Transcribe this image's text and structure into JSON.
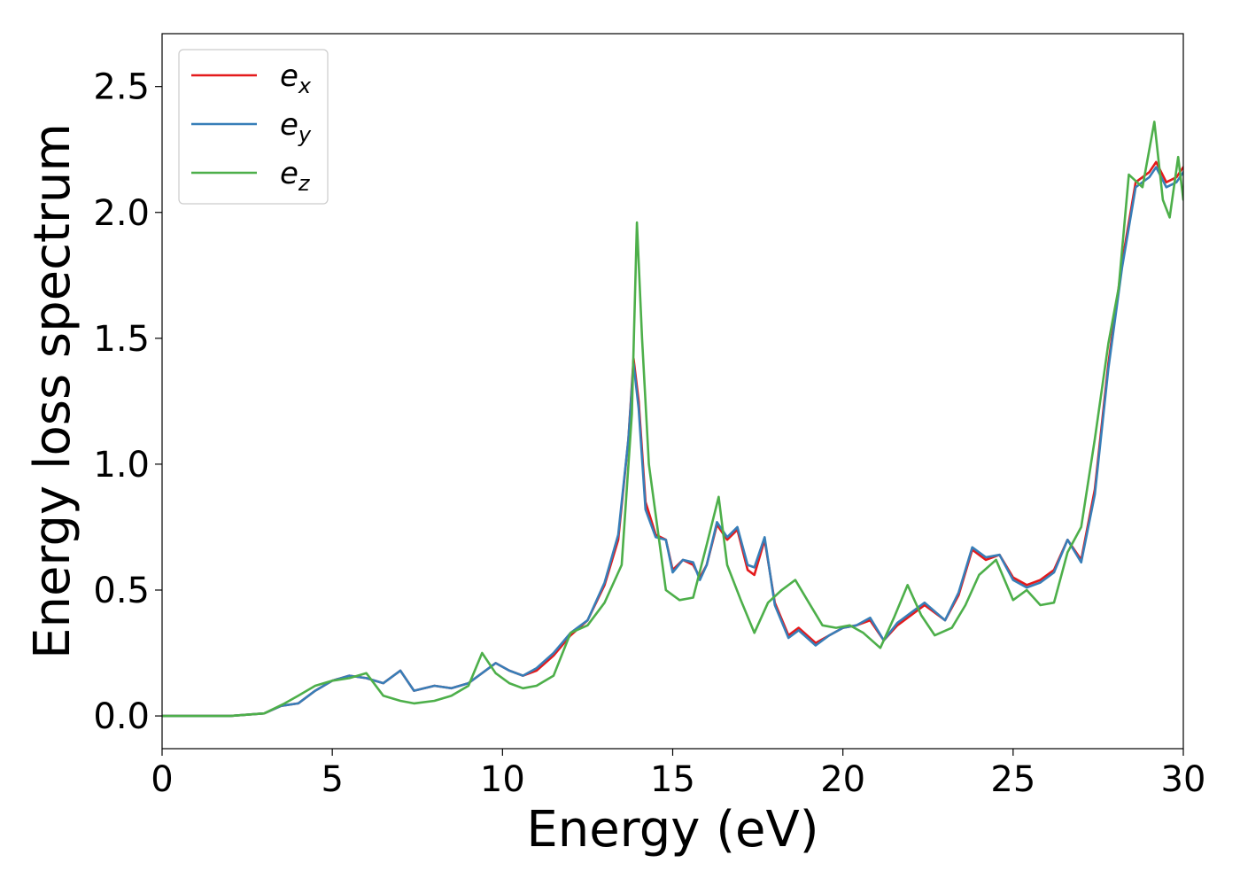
{
  "chart_data": {
    "type": "line",
    "xlabel": "Energy (eV)",
    "ylabel": "Energy loss spectrum",
    "xlim": [
      0,
      30
    ],
    "ylim": [
      -0.13,
      2.71
    ],
    "x_ticks": [
      "0",
      "5",
      "10",
      "15",
      "20",
      "25",
      "30"
    ],
    "y_ticks": [
      "0.0",
      "0.5",
      "1.0",
      "1.5",
      "2.0",
      "2.5"
    ],
    "grid": false,
    "legend_position": "top-left",
    "series": [
      {
        "name": "e",
        "subscript": "x",
        "color": "#e41a1c",
        "points": [
          [
            0,
            0
          ],
          [
            1,
            0
          ],
          [
            2,
            0
          ],
          [
            3,
            0.01
          ],
          [
            3.5,
            0.04
          ],
          [
            4,
            0.05
          ],
          [
            4.5,
            0.1
          ],
          [
            5,
            0.14
          ],
          [
            5.5,
            0.16
          ],
          [
            6,
            0.15
          ],
          [
            6.5,
            0.13
          ],
          [
            7,
            0.18
          ],
          [
            7.4,
            0.1
          ],
          [
            8,
            0.12
          ],
          [
            8.5,
            0.11
          ],
          [
            9,
            0.13
          ],
          [
            9.5,
            0.18
          ],
          [
            9.8,
            0.21
          ],
          [
            10.2,
            0.18
          ],
          [
            10.6,
            0.16
          ],
          [
            11,
            0.18
          ],
          [
            11.5,
            0.24
          ],
          [
            12,
            0.32
          ],
          [
            12.5,
            0.38
          ],
          [
            13,
            0.52
          ],
          [
            13.4,
            0.7
          ],
          [
            13.7,
            1.1
          ],
          [
            13.85,
            1.42
          ],
          [
            14,
            1.25
          ],
          [
            14.2,
            0.85
          ],
          [
            14.5,
            0.72
          ],
          [
            14.8,
            0.7
          ],
          [
            15,
            0.58
          ],
          [
            15.3,
            0.62
          ],
          [
            15.6,
            0.6
          ],
          [
            15.8,
            0.55
          ],
          [
            16,
            0.6
          ],
          [
            16.3,
            0.76
          ],
          [
            16.6,
            0.7
          ],
          [
            16.9,
            0.74
          ],
          [
            17.2,
            0.58
          ],
          [
            17.4,
            0.56
          ],
          [
            17.7,
            0.7
          ],
          [
            18,
            0.45
          ],
          [
            18.4,
            0.32
          ],
          [
            18.7,
            0.35
          ],
          [
            19.2,
            0.29
          ],
          [
            19.6,
            0.32
          ],
          [
            20,
            0.35
          ],
          [
            20.4,
            0.36
          ],
          [
            20.8,
            0.38
          ],
          [
            21.2,
            0.3
          ],
          [
            21.6,
            0.36
          ],
          [
            22,
            0.4
          ],
          [
            22.4,
            0.44
          ],
          [
            23,
            0.38
          ],
          [
            23.4,
            0.48
          ],
          [
            23.8,
            0.66
          ],
          [
            24.2,
            0.62
          ],
          [
            24.6,
            0.64
          ],
          [
            25,
            0.55
          ],
          [
            25.4,
            0.52
          ],
          [
            25.8,
            0.54
          ],
          [
            26.2,
            0.58
          ],
          [
            26.6,
            0.7
          ],
          [
            27,
            0.62
          ],
          [
            27.4,
            0.9
          ],
          [
            27.8,
            1.4
          ],
          [
            28.2,
            1.8
          ],
          [
            28.6,
            2.12
          ],
          [
            29,
            2.16
          ],
          [
            29.2,
            2.2
          ],
          [
            29.5,
            2.12
          ],
          [
            29.8,
            2.14
          ],
          [
            30,
            2.18
          ]
        ]
      },
      {
        "name": "e",
        "subscript": "y",
        "color": "#377eb8",
        "points": [
          [
            0,
            0
          ],
          [
            1,
            0
          ],
          [
            2,
            0
          ],
          [
            3,
            0.01
          ],
          [
            3.5,
            0.04
          ],
          [
            4,
            0.05
          ],
          [
            4.5,
            0.1
          ],
          [
            5,
            0.14
          ],
          [
            5.5,
            0.16
          ],
          [
            6,
            0.15
          ],
          [
            6.5,
            0.13
          ],
          [
            7,
            0.18
          ],
          [
            7.4,
            0.1
          ],
          [
            8,
            0.12
          ],
          [
            8.5,
            0.11
          ],
          [
            9,
            0.13
          ],
          [
            9.5,
            0.18
          ],
          [
            9.8,
            0.21
          ],
          [
            10.2,
            0.18
          ],
          [
            10.6,
            0.16
          ],
          [
            11,
            0.19
          ],
          [
            11.5,
            0.25
          ],
          [
            12,
            0.33
          ],
          [
            12.5,
            0.38
          ],
          [
            13,
            0.53
          ],
          [
            13.4,
            0.72
          ],
          [
            13.7,
            1.1
          ],
          [
            13.85,
            1.4
          ],
          [
            14,
            1.22
          ],
          [
            14.2,
            0.82
          ],
          [
            14.5,
            0.71
          ],
          [
            14.8,
            0.7
          ],
          [
            15,
            0.57
          ],
          [
            15.3,
            0.62
          ],
          [
            15.6,
            0.61
          ],
          [
            15.8,
            0.54
          ],
          [
            16,
            0.6
          ],
          [
            16.3,
            0.77
          ],
          [
            16.6,
            0.71
          ],
          [
            16.9,
            0.75
          ],
          [
            17.2,
            0.6
          ],
          [
            17.4,
            0.59
          ],
          [
            17.7,
            0.71
          ],
          [
            18,
            0.44
          ],
          [
            18.4,
            0.31
          ],
          [
            18.7,
            0.34
          ],
          [
            19.2,
            0.28
          ],
          [
            19.6,
            0.32
          ],
          [
            20,
            0.35
          ],
          [
            20.4,
            0.36
          ],
          [
            20.8,
            0.39
          ],
          [
            21.2,
            0.3
          ],
          [
            21.6,
            0.37
          ],
          [
            22,
            0.41
          ],
          [
            22.4,
            0.45
          ],
          [
            23,
            0.38
          ],
          [
            23.4,
            0.49
          ],
          [
            23.8,
            0.67
          ],
          [
            24.2,
            0.63
          ],
          [
            24.6,
            0.64
          ],
          [
            25,
            0.54
          ],
          [
            25.4,
            0.51
          ],
          [
            25.8,
            0.53
          ],
          [
            26.2,
            0.57
          ],
          [
            26.6,
            0.7
          ],
          [
            27,
            0.61
          ],
          [
            27.4,
            0.88
          ],
          [
            27.8,
            1.38
          ],
          [
            28.2,
            1.78
          ],
          [
            28.6,
            2.1
          ],
          [
            29,
            2.14
          ],
          [
            29.2,
            2.18
          ],
          [
            29.5,
            2.1
          ],
          [
            29.8,
            2.12
          ],
          [
            30,
            2.16
          ]
        ]
      },
      {
        "name": "e",
        "subscript": "z",
        "color": "#4daf4a",
        "points": [
          [
            0,
            0
          ],
          [
            1,
            0
          ],
          [
            2,
            0
          ],
          [
            3,
            0.01
          ],
          [
            3.6,
            0.05
          ],
          [
            4,
            0.08
          ],
          [
            4.5,
            0.12
          ],
          [
            5,
            0.14
          ],
          [
            5.5,
            0.15
          ],
          [
            6,
            0.17
          ],
          [
            6.5,
            0.08
          ],
          [
            7,
            0.06
          ],
          [
            7.4,
            0.05
          ],
          [
            8,
            0.06
          ],
          [
            8.5,
            0.08
          ],
          [
            9,
            0.12
          ],
          [
            9.4,
            0.25
          ],
          [
            9.8,
            0.17
          ],
          [
            10.2,
            0.13
          ],
          [
            10.6,
            0.11
          ],
          [
            11,
            0.12
          ],
          [
            11.5,
            0.16
          ],
          [
            12,
            0.33
          ],
          [
            12.5,
            0.36
          ],
          [
            13,
            0.45
          ],
          [
            13.5,
            0.6
          ],
          [
            13.8,
            1.2
          ],
          [
            13.95,
            1.96
          ],
          [
            14.1,
            1.5
          ],
          [
            14.3,
            1.0
          ],
          [
            14.6,
            0.7
          ],
          [
            14.8,
            0.5
          ],
          [
            15.2,
            0.46
          ],
          [
            15.6,
            0.47
          ],
          [
            16,
            0.68
          ],
          [
            16.35,
            0.87
          ],
          [
            16.6,
            0.6
          ],
          [
            17,
            0.46
          ],
          [
            17.4,
            0.33
          ],
          [
            17.8,
            0.45
          ],
          [
            18.2,
            0.5
          ],
          [
            18.6,
            0.54
          ],
          [
            19,
            0.45
          ],
          [
            19.4,
            0.36
          ],
          [
            19.8,
            0.35
          ],
          [
            20.2,
            0.36
          ],
          [
            20.6,
            0.33
          ],
          [
            21.1,
            0.27
          ],
          [
            21.5,
            0.39
          ],
          [
            21.9,
            0.52
          ],
          [
            22.3,
            0.4
          ],
          [
            22.7,
            0.32
          ],
          [
            23.2,
            0.35
          ],
          [
            23.6,
            0.44
          ],
          [
            24,
            0.56
          ],
          [
            24.5,
            0.62
          ],
          [
            25,
            0.46
          ],
          [
            25.4,
            0.5
          ],
          [
            25.8,
            0.44
          ],
          [
            26.2,
            0.45
          ],
          [
            26.6,
            0.65
          ],
          [
            27,
            0.75
          ],
          [
            27.4,
            1.1
          ],
          [
            27.8,
            1.48
          ],
          [
            28.1,
            1.7
          ],
          [
            28.4,
            2.15
          ],
          [
            28.8,
            2.1
          ],
          [
            29.15,
            2.36
          ],
          [
            29.4,
            2.05
          ],
          [
            29.6,
            1.98
          ],
          [
            29.85,
            2.22
          ],
          [
            30,
            2.05
          ]
        ]
      }
    ]
  }
}
